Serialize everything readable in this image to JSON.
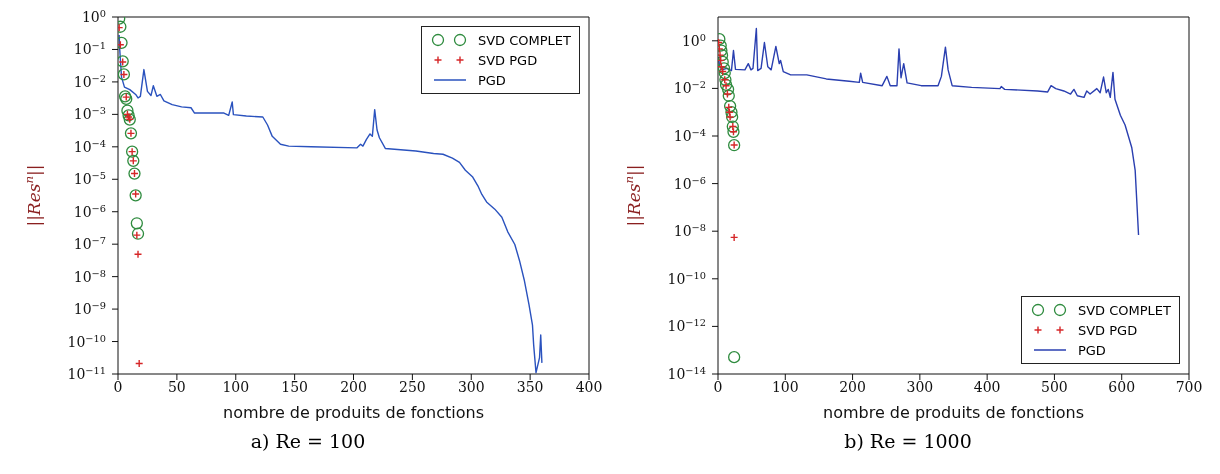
{
  "chart_data": [
    {
      "type": "line",
      "title": "a) Re = 100",
      "xlabel": "nombre de produits de fonctions",
      "ylabel": "||Res$^{n}$||",
      "log": "y",
      "legend": "top right",
      "grid": false,
      "xlim": [
        0,
        400
      ],
      "xticks": [
        0,
        50,
        100,
        150,
        200,
        250,
        300,
        350,
        400
      ],
      "ylim": [
        1e-11,
        1
      ],
      "yticks": [
        {
          "value": 1e-11,
          "label": "10$^{−11}$"
        },
        {
          "value": 1e-10,
          "label": "10$^{−10}$"
        },
        {
          "value": 1e-09,
          "label": "10$^{−9}$"
        },
        {
          "value": 1e-08,
          "label": "10$^{−8}$"
        },
        {
          "value": 1e-07,
          "label": "10$^{−7}$"
        },
        {
          "value": 1e-06,
          "label": "10$^{−6}$"
        },
        {
          "value": 1e-05,
          "label": "10$^{−5}$"
        },
        {
          "value": 0.0001,
          "label": "10$^{−4}$"
        },
        {
          "value": 0.001,
          "label": "10$^{−3}$"
        },
        {
          "value": 0.01,
          "label": "10$^{−2}$"
        },
        {
          "value": 0.1,
          "label": "10$^{−1}$"
        },
        {
          "value": 1,
          "label": "10$^{0}$"
        }
      ],
      "series": [
        {
          "name": "SVD COMPLET",
          "type": "scatter",
          "marker": "circle",
          "color": "#2e8b3e",
          "x": [
            1,
            2,
            3,
            4,
            5,
            6,
            7,
            8,
            9,
            10,
            11,
            12,
            13,
            14,
            15,
            16,
            17
          ],
          "values": [
            0.89,
            0.5,
            0.16,
            0.043,
            0.017,
            0.0036,
            0.003,
            0.0013,
            0.00093,
            0.00069,
            0.00026,
            7.1e-05,
            3.7e-05,
            1.5e-05,
            3.2e-06,
            4.4e-07,
            2.1e-07
          ]
        },
        {
          "name": "SVD PGD",
          "type": "scatter",
          "marker": "cross",
          "color": "#d62728",
          "x": [
            1,
            2,
            4,
            5,
            7,
            8,
            9,
            10,
            11,
            12,
            13,
            14,
            15,
            16,
            17,
            18
          ],
          "values": [
            0.47,
            0.14,
            0.041,
            0.017,
            0.0034,
            0.001,
            0.00083,
            0.00071,
            0.00026,
            7.1e-05,
            3.7e-05,
            1.5e-05,
            3.5e-06,
            1.9e-07,
            4.9e-08,
            2.1e-11
          ]
        },
        {
          "name": "PGD",
          "type": "line",
          "marker": "none",
          "color": "#2a52be",
          "x": [
            1,
            1.4,
            3,
            5.5,
            10,
            15,
            17,
            19,
            22,
            25,
            28,
            30,
            33,
            36,
            39,
            46,
            54,
            62,
            65,
            82,
            90,
            94,
            97,
            98,
            109,
            123,
            127,
            131,
            138,
            145,
            164,
            203,
            206,
            208,
            211,
            214,
            216,
            218,
            220,
            222,
            227,
            253,
            268,
            276,
            284,
            290,
            295,
            301,
            306,
            309,
            313,
            320,
            326,
            331,
            337,
            341,
            345,
            349,
            352,
            353,
            355,
            358,
            359,
            360
          ],
          "values": [
            0.28,
            0.11,
            0.014,
            0.0069,
            0.0058,
            0.0041,
            0.0032,
            0.0036,
            0.024,
            0.0051,
            0.0038,
            0.0076,
            0.0036,
            0.0041,
            0.0026,
            0.002,
            0.0017,
            0.0016,
            0.0011,
            0.0011,
            0.0011,
            0.00093,
            0.0024,
            0.00098,
            0.00089,
            0.00083,
            0.00047,
            0.00021,
            0.00012,
            0.000105,
            0.0001,
            9.3e-05,
            0.00012,
            0.000105,
            0.00017,
            0.00025,
            0.00021,
            0.0014,
            0.00033,
            0.00019,
            8.9e-05,
            7.4e-05,
            6.2e-05,
            5.9e-05,
            4.5e-05,
            3.3e-05,
            1.9e-05,
            1.2e-05,
            5.9e-06,
            3.4e-06,
            2e-06,
            1.2e-06,
            6.8e-07,
            2.4e-07,
            9.8e-08,
            3.1e-08,
            7.9e-09,
            1.4e-09,
            3.2e-10,
            7.9e-11,
            1.1e-11,
            3.2e-11,
            1.6e-10,
            2.2e-11
          ]
        }
      ]
    },
    {
      "type": "line",
      "title": "b) Re = 1000",
      "xlabel": "nombre de produits de fonctions",
      "ylabel": "||Res$^{n}$||",
      "log": "y",
      "legend": "bottom right",
      "grid": false,
      "xlim": [
        0,
        700
      ],
      "xticks": [
        0,
        100,
        200,
        300,
        400,
        500,
        600,
        700
      ],
      "ylim": [
        1e-14,
        10
      ],
      "yticks": [
        {
          "value": 1e-14,
          "label": "10$^{−14}$"
        },
        {
          "value": 1e-12,
          "label": "10$^{−12}$"
        },
        {
          "value": 1e-10,
          "label": "10$^{−10}$"
        },
        {
          "value": 1e-08,
          "label": "10$^{−8}$"
        },
        {
          "value": 1e-06,
          "label": "10$^{−6}$"
        },
        {
          "value": 0.0001,
          "label": "10$^{−4}$"
        },
        {
          "value": 0.01,
          "label": "10$^{−2}$"
        },
        {
          "value": 1,
          "label": "10$^{0}$"
        }
      ],
      "series": [
        {
          "name": "SVD COMPLET",
          "type": "scatter",
          "marker": "circle",
          "color": "#2e8b3e",
          "x": [
            2,
            4,
            5,
            6,
            7,
            9,
            10,
            11,
            12,
            15,
            16,
            18,
            20,
            21,
            22,
            23,
            24,
            24
          ],
          "values": [
            1.17,
            0.63,
            0.39,
            0.25,
            0.13,
            0.069,
            0.044,
            0.023,
            0.014,
            0.0091,
            0.0049,
            0.0018,
            0.001,
            0.00063,
            0.00025,
            0.00015,
            4.1e-05,
            5.1e-14
          ]
        },
        {
          "name": "SVD PGD",
          "type": "scatter",
          "marker": "cross",
          "color": "#d62728",
          "x": [
            1,
            2,
            3,
            4,
            5,
            7,
            10,
            12,
            14,
            16,
            17,
            18,
            22,
            23,
            24,
            24
          ],
          "values": [
            0.85,
            0.46,
            0.25,
            0.15,
            0.081,
            0.051,
            0.023,
            0.013,
            0.0058,
            0.0016,
            0.001,
            0.00063,
            0.00025,
            0.00015,
            4.2e-05,
            5.5e-09
          ]
        },
        {
          "name": "PGD",
          "type": "line",
          "marker": "none",
          "color": "#2a3fb0",
          "x": [
            1,
            2,
            6,
            13,
            20,
            23,
            26,
            40,
            45,
            49,
            52,
            57,
            59,
            64,
            69,
            74,
            79,
            86,
            91,
            93,
            97,
            108,
            132,
            161,
            195,
            210,
            212,
            215,
            244,
            251,
            256,
            266,
            269,
            272,
            276,
            281,
            302,
            327,
            332,
            338,
            342,
            348,
            377,
            419,
            421,
            426,
            475,
            490,
            495,
            502,
            514,
            524,
            529,
            534,
            544,
            548,
            553,
            563,
            568,
            573,
            577,
            580,
            583,
            587,
            590,
            598,
            605,
            615,
            620,
            622,
            625
          ],
          "values": [
            0.21,
            0.095,
            0.06,
            0.069,
            0.056,
            0.39,
            0.063,
            0.06,
            0.11,
            0.06,
            0.069,
            3.3,
            0.056,
            0.069,
            0.85,
            0.081,
            0.06,
            0.58,
            0.11,
            0.15,
            0.051,
            0.037,
            0.037,
            0.025,
            0.02,
            0.018,
            0.044,
            0.018,
            0.013,
            0.032,
            0.013,
            0.013,
            0.46,
            0.028,
            0.11,
            0.017,
            0.013,
            0.013,
            0.032,
            0.54,
            0.06,
            0.013,
            0.011,
            0.0098,
            0.012,
            0.0091,
            0.0078,
            0.0071,
            0.013,
            0.0098,
            0.0078,
            0.0058,
            0.0091,
            0.0049,
            0.0042,
            0.0078,
            0.0058,
            0.0098,
            0.0066,
            0.03,
            0.0066,
            0.0091,
            0.0042,
            0.047,
            0.0035,
            0.00074,
            0.00029,
            3.2e-05,
            3.6e-06,
            3e-07,
            6.9e-09
          ]
        }
      ]
    }
  ]
}
